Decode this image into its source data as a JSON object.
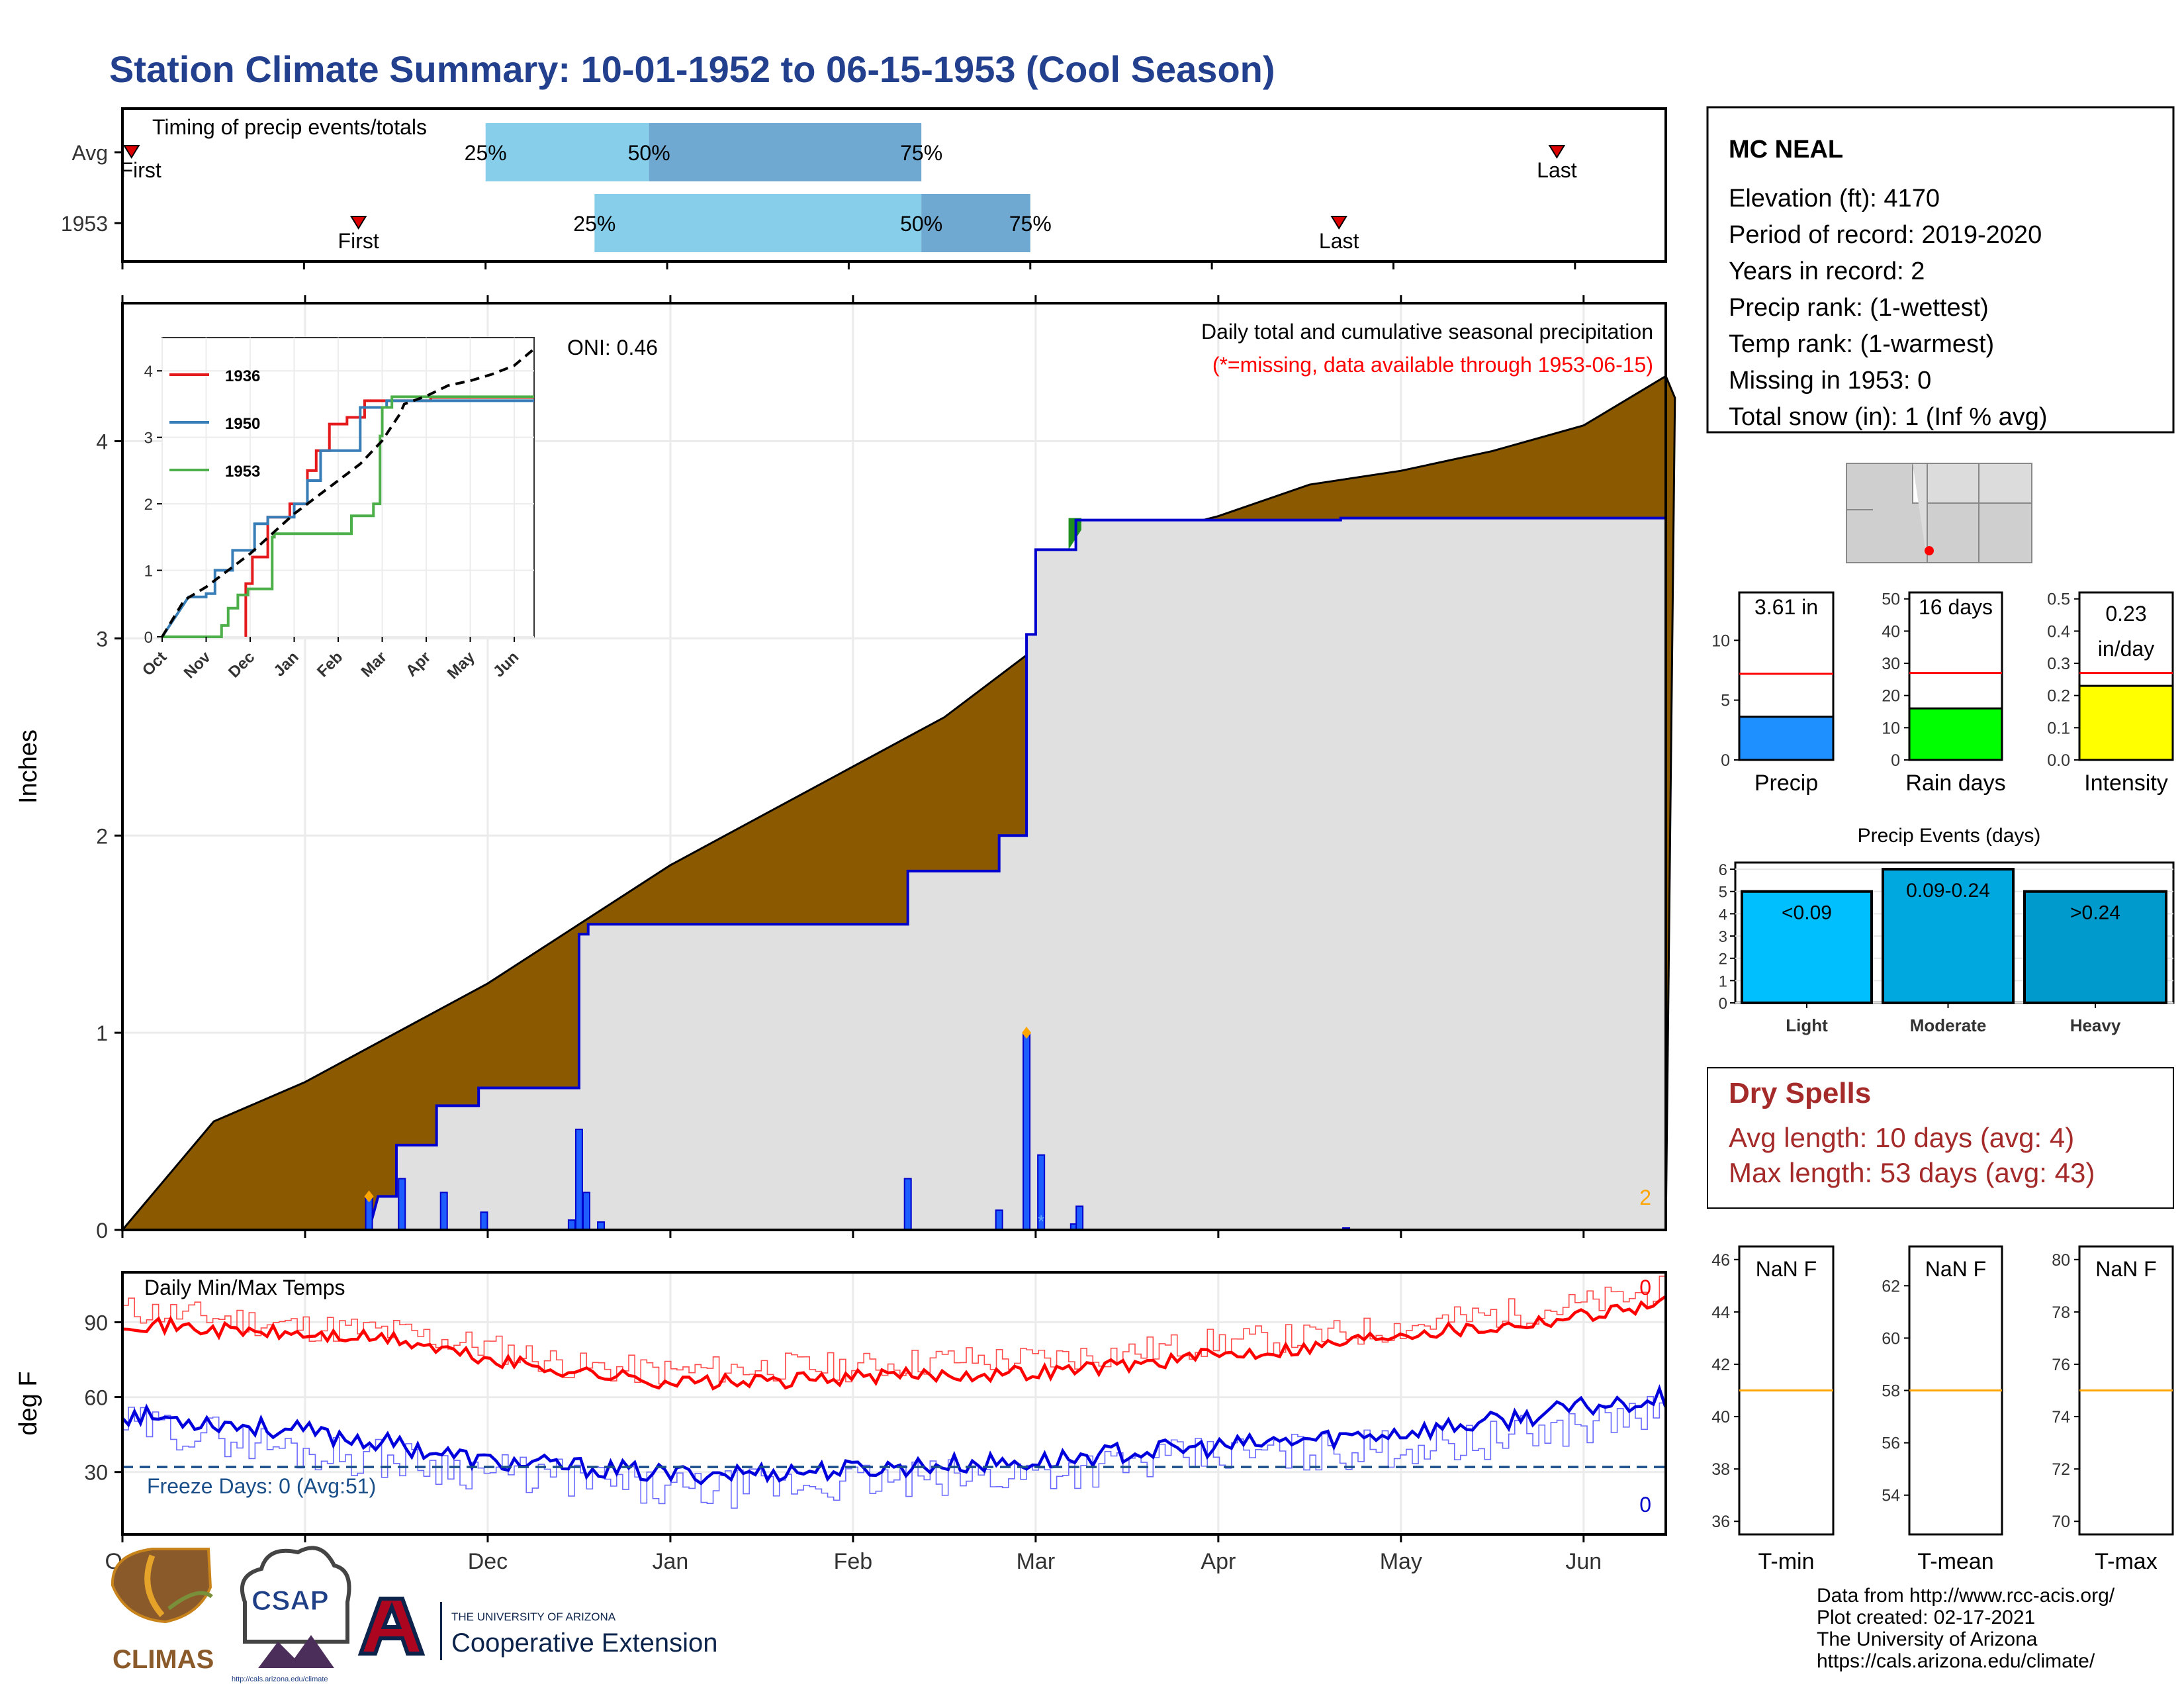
{
  "title": "Station Climate Summary: 10-01-1952 to 06-15-1953 (Cool Season)",
  "colors": {
    "title": "#23408e",
    "precip_fill": "#8b5a00",
    "current_fill": "#e0e0e0",
    "current_line": "#0000cc",
    "avg_tmax": "#ff0000",
    "curr_tmax": "#ff4d4d",
    "avg_tmin": "#0000dd",
    "curr_tmin": "#6a6aff",
    "freeze": "#1a4f8a",
    "dry_spells": "#a52a2a",
    "orange": "#ffa500"
  },
  "chart_data": [
    {
      "name": "timing",
      "type": "bar",
      "title": "Timing of precip events/totals",
      "rows": [
        "Avg",
        "1953"
      ],
      "x_range_months": [
        0,
        8.5
      ],
      "avg": {
        "first": 0.05,
        "q25": 2.0,
        "q50": 2.9,
        "q75": 4.4,
        "last": 7.9
      },
      "current": {
        "first": 1.3,
        "q25": 2.6,
        "q50": 4.4,
        "q75": 5.0,
        "last": 6.7
      },
      "labels": {
        "first": "First",
        "last": "Last",
        "q25": "25%",
        "q50": "50%",
        "q75": "75%"
      }
    },
    {
      "name": "precip",
      "type": "area",
      "title": "Daily total and cumulative seasonal precipitation",
      "subtitle": "(*=missing, data available through 1953-06-15)",
      "ylabel": "Inches",
      "oni": "ONI: 0.46",
      "ylim": [
        0,
        4.7
      ],
      "yticks": [
        0,
        1,
        2,
        3,
        4
      ],
      "corner_value": "2",
      "avg_cumulative": [
        [
          0,
          0
        ],
        [
          0.5,
          0.55
        ],
        [
          1,
          0.75
        ],
        [
          1.5,
          1.0
        ],
        [
          2,
          1.25
        ],
        [
          2.5,
          1.55
        ],
        [
          3,
          1.85
        ],
        [
          3.5,
          2.1
        ],
        [
          4,
          2.35
        ],
        [
          4.5,
          2.6
        ],
        [
          5,
          2.95
        ],
        [
          5.4,
          3.35
        ],
        [
          5.5,
          3.5
        ],
        [
          6,
          3.62
        ],
        [
          6.5,
          3.78
        ],
        [
          7,
          3.85
        ],
        [
          7.5,
          3.95
        ],
        [
          8,
          4.08
        ],
        [
          8.5,
          4.22
        ],
        [
          8.45,
          4.33
        ]
      ],
      "current_steps": [
        [
          0,
          0
        ],
        [
          1.35,
          0
        ],
        [
          1.4,
          0.17
        ],
        [
          1.5,
          0.17
        ],
        [
          1.5,
          0.43
        ],
        [
          1.72,
          0.43
        ],
        [
          1.72,
          0.63
        ],
        [
          1.95,
          0.63
        ],
        [
          1.95,
          0.72
        ],
        [
          2.5,
          0.72
        ],
        [
          2.5,
          1.5
        ],
        [
          2.55,
          1.5
        ],
        [
          2.55,
          1.55
        ],
        [
          4.3,
          1.55
        ],
        [
          4.3,
          1.82
        ],
        [
          4.8,
          1.82
        ],
        [
          4.8,
          2.0
        ],
        [
          4.95,
          2.0
        ],
        [
          4.95,
          3.02
        ],
        [
          5.0,
          3.02
        ],
        [
          5.0,
          3.45
        ],
        [
          5.22,
          3.45
        ],
        [
          5.22,
          3.6
        ],
        [
          5.4,
          3.6
        ],
        [
          6.67,
          3.6
        ],
        [
          6.67,
          3.61
        ],
        [
          8.45,
          3.61
        ]
      ],
      "daily_bars": [
        [
          1.35,
          0.17
        ],
        [
          1.53,
          0.26
        ],
        [
          1.76,
          0.19
        ],
        [
          1.98,
          0.09
        ],
        [
          2.46,
          0.05
        ],
        [
          2.5,
          0.51
        ],
        [
          2.54,
          0.19
        ],
        [
          2.62,
          0.04
        ],
        [
          4.3,
          0.26
        ],
        [
          4.8,
          0.1
        ],
        [
          4.95,
          1.0
        ],
        [
          5.03,
          0.38
        ],
        [
          5.21,
          0.03
        ],
        [
          5.24,
          0.12
        ],
        [
          6.7,
          0.01
        ]
      ],
      "missing_marks": [
        [
          5.03,
          0.08
        ]
      ]
    },
    {
      "name": "inset",
      "type": "line",
      "categories": [
        "Oct",
        "Nov",
        "Dec",
        "Jan",
        "Feb",
        "Mar",
        "Apr",
        "May",
        "Jun"
      ],
      "ylim": [
        0,
        4.5
      ],
      "yticks": [
        0,
        1,
        2,
        3,
        4
      ],
      "series": [
        {
          "name": "1936",
          "color": "#e41a1c",
          "points": [
            [
              1.9,
              0
            ],
            [
              1.9,
              0.8
            ],
            [
              2.05,
              0.8
            ],
            [
              2.05,
              1.2
            ],
            [
              2.4,
              1.2
            ],
            [
              2.4,
              1.8
            ],
            [
              2.9,
              1.8
            ],
            [
              2.9,
              2.0
            ],
            [
              3.3,
              2.0
            ],
            [
              3.3,
              2.5
            ],
            [
              3.5,
              2.5
            ],
            [
              3.5,
              2.8
            ],
            [
              3.8,
              2.8
            ],
            [
              3.8,
              3.2
            ],
            [
              4.2,
              3.2
            ],
            [
              4.2,
              3.3
            ],
            [
              4.6,
              3.3
            ],
            [
              4.6,
              3.55
            ],
            [
              6.1,
              3.55
            ],
            [
              6.1,
              3.6
            ],
            [
              8.45,
              3.6
            ]
          ]
        },
        {
          "name": "1950",
          "color": "#377eb8",
          "points": [
            [
              0,
              0
            ],
            [
              0.3,
              0.3
            ],
            [
              0.6,
              0.6
            ],
            [
              0.9,
              0.6
            ],
            [
              1.0,
              0.6
            ],
            [
              1.0,
              0.65
            ],
            [
              1.2,
              0.65
            ],
            [
              1.2,
              1.0
            ],
            [
              1.6,
              1.0
            ],
            [
              1.6,
              1.3
            ],
            [
              2.1,
              1.3
            ],
            [
              2.1,
              1.7
            ],
            [
              2.4,
              1.7
            ],
            [
              2.4,
              1.8
            ],
            [
              3.0,
              1.8
            ],
            [
              3.0,
              2.0
            ],
            [
              3.3,
              2.0
            ],
            [
              3.3,
              2.35
            ],
            [
              3.6,
              2.35
            ],
            [
              3.6,
              2.8
            ],
            [
              4.5,
              2.8
            ],
            [
              4.5,
              3.45
            ],
            [
              5.1,
              3.45
            ],
            [
              5.1,
              3.55
            ],
            [
              8.45,
              3.55
            ]
          ]
        },
        {
          "name": "1953",
          "color": "#4daf4a",
          "points": [
            [
              0,
              0
            ],
            [
              1.35,
              0
            ],
            [
              1.35,
              0.17
            ],
            [
              1.5,
              0.17
            ],
            [
              1.5,
              0.43
            ],
            [
              1.72,
              0.43
            ],
            [
              1.72,
              0.63
            ],
            [
              1.95,
              0.63
            ],
            [
              1.95,
              0.72
            ],
            [
              2.5,
              0.72
            ],
            [
              2.5,
              1.5
            ],
            [
              2.55,
              1.5
            ],
            [
              2.55,
              1.55
            ],
            [
              4.3,
              1.55
            ],
            [
              4.3,
              1.82
            ],
            [
              4.8,
              1.82
            ],
            [
              4.8,
              2.0
            ],
            [
              4.95,
              2.0
            ],
            [
              4.95,
              3.02
            ],
            [
              5.0,
              3.02
            ],
            [
              5.0,
              3.45
            ],
            [
              5.22,
              3.45
            ],
            [
              5.22,
              3.61
            ],
            [
              8.45,
              3.61
            ]
          ]
        },
        {
          "name": "avg",
          "color": "#000000",
          "dash": true,
          "points": [
            [
              0,
              0
            ],
            [
              0.5,
              0.55
            ],
            [
              1,
              0.75
            ],
            [
              1.5,
              1.0
            ],
            [
              2,
              1.25
            ],
            [
              2.5,
              1.55
            ],
            [
              3,
              1.85
            ],
            [
              3.5,
              2.1
            ],
            [
              4,
              2.35
            ],
            [
              4.5,
              2.6
            ],
            [
              5,
              2.95
            ],
            [
              5.4,
              3.35
            ],
            [
              5.5,
              3.5
            ],
            [
              6,
              3.62
            ],
            [
              6.5,
              3.78
            ],
            [
              7,
              3.85
            ],
            [
              7.5,
              3.95
            ],
            [
              8,
              4.08
            ],
            [
              8.45,
              4.33
            ]
          ]
        }
      ]
    },
    {
      "name": "temps",
      "type": "line",
      "title": "Daily Min/Max Temps",
      "ylabel": "deg F",
      "ylim": [
        5,
        110
      ],
      "yticks": [
        30,
        60,
        90
      ],
      "xlabels": [
        "Oct",
        "Nov",
        "Dec",
        "Jan",
        "Feb",
        "Mar",
        "Apr",
        "May",
        "Jun"
      ],
      "freeze_line": 32,
      "freeze_text": "Freeze Days: 0 (Avg:51)",
      "tmax_corner": "0",
      "tmin_corner": "0",
      "avg_tmax": [
        [
          0,
          90
        ],
        [
          0.5,
          87
        ],
        [
          1,
          85
        ],
        [
          1.5,
          83
        ],
        [
          2,
          75
        ],
        [
          2.5,
          70
        ],
        [
          3,
          66
        ],
        [
          3.5,
          66
        ],
        [
          4,
          68
        ],
        [
          4.5,
          69
        ],
        [
          5,
          70
        ],
        [
          5.5,
          73
        ],
        [
          6,
          77
        ],
        [
          6.5,
          80
        ],
        [
          7,
          86
        ],
        [
          7.5,
          88
        ],
        [
          8,
          93
        ],
        [
          8.45,
          98
        ]
      ],
      "curr_tmax": [
        [
          0,
          95
        ],
        [
          0.5,
          92
        ],
        [
          1,
          88
        ],
        [
          1.5,
          86
        ],
        [
          2,
          80
        ],
        [
          2.5,
          72
        ],
        [
          3,
          70
        ],
        [
          3.5,
          72
        ],
        [
          4,
          72
        ],
        [
          4.5,
          75
        ],
        [
          5,
          75
        ],
        [
          5.5,
          78
        ],
        [
          6,
          82
        ],
        [
          6.5,
          84
        ],
        [
          7,
          88
        ],
        [
          7.5,
          93
        ],
        [
          8,
          97
        ],
        [
          8.45,
          103
        ]
      ],
      "avg_tmin": [
        [
          0,
          53
        ],
        [
          0.5,
          50
        ],
        [
          1,
          46
        ],
        [
          1.5,
          41
        ],
        [
          2,
          34
        ],
        [
          2.5,
          32
        ],
        [
          3,
          29
        ],
        [
          3.5,
          30
        ],
        [
          4,
          31
        ],
        [
          4.5,
          33
        ],
        [
          5,
          34
        ],
        [
          5.5,
          38
        ],
        [
          6,
          40
        ],
        [
          6.5,
          43
        ],
        [
          7,
          46
        ],
        [
          7.5,
          50
        ],
        [
          8,
          56
        ],
        [
          8.45,
          60
        ]
      ],
      "curr_tmin": [
        [
          0,
          49
        ],
        [
          0.5,
          45
        ],
        [
          1,
          38
        ],
        [
          1.5,
          35
        ],
        [
          2,
          30
        ],
        [
          2.5,
          27
        ],
        [
          3,
          22
        ],
        [
          3.5,
          24
        ],
        [
          4,
          26
        ],
        [
          4.5,
          27
        ],
        [
          5,
          30
        ],
        [
          5.5,
          33
        ],
        [
          6,
          37
        ],
        [
          6.5,
          38
        ],
        [
          7,
          40
        ],
        [
          7.5,
          43
        ],
        [
          8,
          49
        ],
        [
          8.45,
          55
        ]
      ]
    },
    {
      "name": "precip_bars",
      "type": "bar",
      "categories": [
        "Precip",
        "Rain days",
        "Intensity"
      ],
      "values": [
        3.61,
        16,
        0.23
      ],
      "labels": [
        "3.61 in",
        "16 days",
        "0.23 in/day"
      ],
      "averages": [
        7.2,
        27,
        0.27
      ],
      "ylims": [
        [
          0,
          14
        ],
        [
          0,
          52
        ],
        [
          0,
          0.52
        ]
      ],
      "yticks": [
        [
          0,
          5,
          10
        ],
        [
          0,
          10,
          20,
          30,
          40,
          50
        ],
        [
          0.0,
          0.1,
          0.2,
          0.3,
          0.4,
          0.5
        ]
      ],
      "colors": [
        "#1e90ff",
        "#00ff00",
        "#ffff00"
      ]
    },
    {
      "name": "precip_events",
      "type": "bar",
      "title": "Precip Events (days)",
      "categories": [
        "Light",
        "Moderate",
        "Heavy"
      ],
      "values": [
        5,
        6,
        5
      ],
      "labels": [
        "<0.09",
        "0.09-0.24",
        ">0.24"
      ],
      "ylim": [
        0,
        6.3
      ],
      "yticks": [
        0,
        1,
        2,
        3,
        4,
        5,
        6
      ],
      "colors": [
        "#00bfff",
        "#00a8e0",
        "#009acd"
      ]
    },
    {
      "name": "temp_bars",
      "type": "bar",
      "categories": [
        "T-min",
        "T-mean",
        "T-max"
      ],
      "labels": [
        "NaN F",
        "NaN F",
        "NaN F"
      ],
      "averages": [
        41,
        58,
        75
      ],
      "ylims": [
        [
          35.5,
          46.5
        ],
        [
          52.5,
          63.5
        ],
        [
          69.5,
          80.5
        ]
      ],
      "yticks": [
        [
          36,
          38,
          40,
          42,
          44,
          46
        ],
        [
          54,
          56,
          58,
          60,
          62
        ],
        [
          70,
          72,
          74,
          76,
          78,
          80
        ]
      ]
    }
  ],
  "station": {
    "name": "MC NEAL",
    "lines": [
      "Elevation (ft): 4170",
      "Period of record: 2019-2020",
      "Years in record: 2",
      "Precip rank:  (1-wettest)",
      "Temp rank:  (1-warmest)",
      "Missing in 1953: 0",
      "Total snow (in): 1 (Inf % avg)"
    ]
  },
  "dry_spells": {
    "title": "Dry Spells",
    "avg": "Avg length: 10 days (avg: 4)",
    "max": "Max length: 53 days (avg: 43)"
  },
  "footer": {
    "lines": [
      "Data from http://www.rcc-acis.org/",
      "Plot created: 02-17-2021",
      "The University of Arizona",
      "https://cals.arizona.edu/climate/"
    ],
    "climas": "CLIMAS",
    "csap": "CSAP",
    "csap_url": "http://cals.arizona.edu/climate",
    "ua_small": "THE UNIVERSITY OF ARIZONA",
    "ua_big": "Cooperative Extension"
  }
}
